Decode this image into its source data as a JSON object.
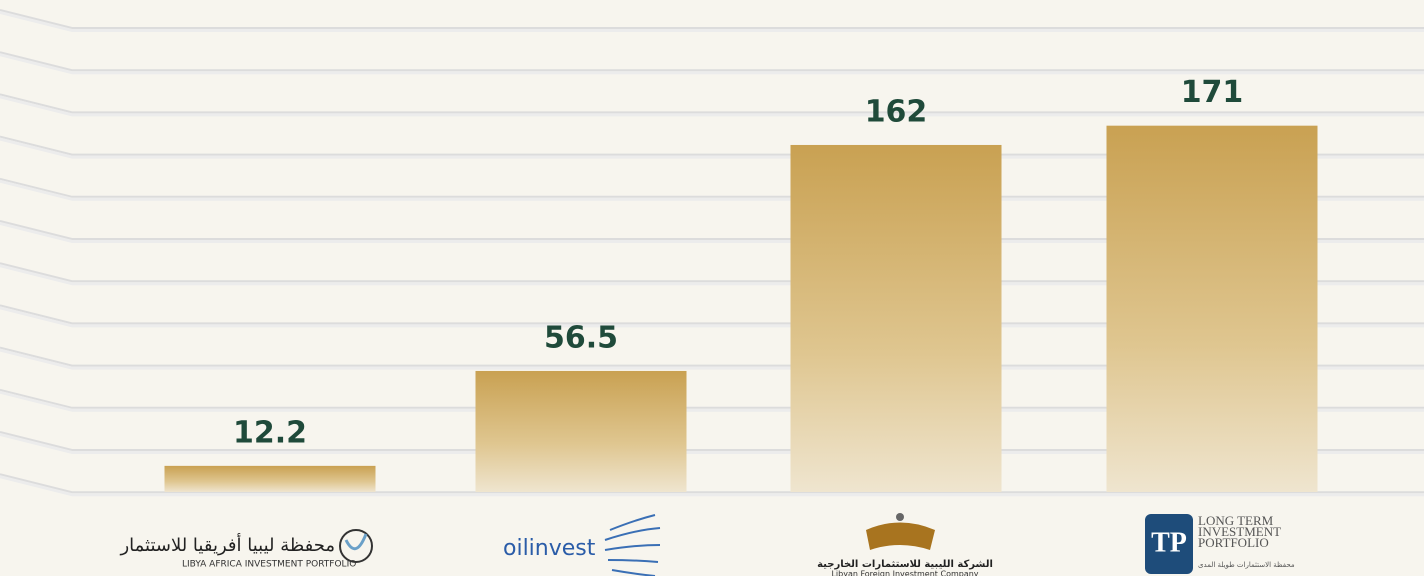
{
  "chart_data": {
    "type": "bar",
    "categories": [
      "LIBYA AFRICA INVESTMENT PORTFOLIO",
      "oilinvest",
      "Libyan Foreign Investment Company",
      "LONG TERM INVESTMENT PORTFOLIO"
    ],
    "category_subtitles": [
      "محفظة ليبيا أفريقيا للاستثمار",
      null,
      "الشركة الليبية للاستثمارات الخارجية",
      "محفظة الاستثمارات طويلة المدى"
    ],
    "values": [
      12.2,
      56.5,
      162,
      171
    ],
    "color": "#c9a152",
    "label_color": "#1f4a3a",
    "ylim": [
      0,
      225
    ]
  }
}
